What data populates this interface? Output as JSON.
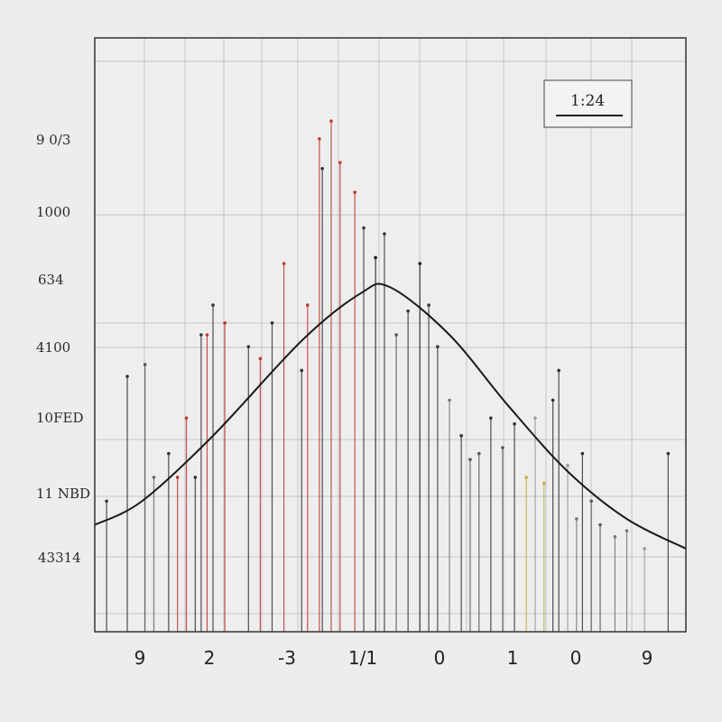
{
  "chart_data": {
    "type": "line",
    "y_tick_labels": [
      "9 0/3",
      "1000",
      "634",
      "4100",
      "10FED",
      "11 NBD",
      "43314"
    ],
    "x_tick_labels": [
      "9",
      "2",
      "-3",
      "1/1",
      "0",
      "1",
      "0",
      "9"
    ],
    "legend": {
      "label": "1:24",
      "placement": "top-right"
    },
    "grid": true,
    "xlim": [
      0,
      1
    ],
    "ylim": [
      0,
      1
    ],
    "series": [
      {
        "color": "#1a1a1a",
        "x": [
          0.0,
          0.08,
          0.2,
          0.35,
          0.45,
          0.5,
          0.6,
          0.7,
          0.8,
          0.9,
          1.0
        ],
        "y": [
          0.18,
          0.22,
          0.33,
          0.49,
          0.57,
          0.58,
          0.5,
          0.38,
          0.27,
          0.19,
          0.14
        ]
      }
    ],
    "spikes": [
      {
        "x": 0.02,
        "y": 0.22,
        "color": "#333333"
      },
      {
        "x": 0.055,
        "y": 0.43,
        "color": "#333333"
      },
      {
        "x": 0.085,
        "y": 0.45,
        "color": "#555555"
      },
      {
        "x": 0.1,
        "y": 0.26,
        "color": "#666666"
      },
      {
        "x": 0.125,
        "y": 0.3,
        "color": "#333333"
      },
      {
        "x": 0.14,
        "y": 0.26,
        "color": "#c0392b"
      },
      {
        "x": 0.155,
        "y": 0.36,
        "color": "#c0392b"
      },
      {
        "x": 0.17,
        "y": 0.26,
        "color": "#333333"
      },
      {
        "x": 0.18,
        "y": 0.5,
        "color": "#333333"
      },
      {
        "x": 0.19,
        "y": 0.5,
        "color": "#c0392b"
      },
      {
        "x": 0.2,
        "y": 0.55,
        "color": "#333333"
      },
      {
        "x": 0.22,
        "y": 0.52,
        "color": "#c0392b"
      },
      {
        "x": 0.26,
        "y": 0.48,
        "color": "#333333"
      },
      {
        "x": 0.28,
        "y": 0.46,
        "color": "#c0392b"
      },
      {
        "x": 0.3,
        "y": 0.52,
        "color": "#333333"
      },
      {
        "x": 0.32,
        "y": 0.62,
        "color": "#c0392b"
      },
      {
        "x": 0.35,
        "y": 0.44,
        "color": "#333333"
      },
      {
        "x": 0.36,
        "y": 0.55,
        "color": "#c0392b"
      },
      {
        "x": 0.38,
        "y": 0.83,
        "color": "#c0392b"
      },
      {
        "x": 0.385,
        "y": 0.78,
        "color": "#333333"
      },
      {
        "x": 0.4,
        "y": 0.86,
        "color": "#c0392b"
      },
      {
        "x": 0.415,
        "y": 0.79,
        "color": "#c0392b"
      },
      {
        "x": 0.44,
        "y": 0.74,
        "color": "#c0392b"
      },
      {
        "x": 0.455,
        "y": 0.68,
        "color": "#333333"
      },
      {
        "x": 0.475,
        "y": 0.63,
        "color": "#1a1a1a"
      },
      {
        "x": 0.49,
        "y": 0.67,
        "color": "#333333"
      },
      {
        "x": 0.51,
        "y": 0.5,
        "color": "#555555"
      },
      {
        "x": 0.53,
        "y": 0.54,
        "color": "#333333"
      },
      {
        "x": 0.55,
        "y": 0.62,
        "color": "#1a1a1a"
      },
      {
        "x": 0.565,
        "y": 0.55,
        "color": "#333333"
      },
      {
        "x": 0.58,
        "y": 0.48,
        "color": "#333333"
      },
      {
        "x": 0.6,
        "y": 0.39,
        "color": "#777777"
      },
      {
        "x": 0.62,
        "y": 0.33,
        "color": "#333333"
      },
      {
        "x": 0.635,
        "y": 0.29,
        "color": "#555555"
      },
      {
        "x": 0.65,
        "y": 0.3,
        "color": "#555555"
      },
      {
        "x": 0.67,
        "y": 0.36,
        "color": "#333333"
      },
      {
        "x": 0.69,
        "y": 0.31,
        "color": "#555555"
      },
      {
        "x": 0.71,
        "y": 0.35,
        "color": "#333333"
      },
      {
        "x": 0.73,
        "y": 0.26,
        "color": "#b8b040"
      },
      {
        "x": 0.745,
        "y": 0.36,
        "color": "#999999"
      },
      {
        "x": 0.76,
        "y": 0.25,
        "color": "#b8b040"
      },
      {
        "x": 0.775,
        "y": 0.39,
        "color": "#333333"
      },
      {
        "x": 0.785,
        "y": 0.44,
        "color": "#333333"
      },
      {
        "x": 0.8,
        "y": 0.28,
        "color": "#999999"
      },
      {
        "x": 0.815,
        "y": 0.19,
        "color": "#777777"
      },
      {
        "x": 0.825,
        "y": 0.3,
        "color": "#333333"
      },
      {
        "x": 0.84,
        "y": 0.22,
        "color": "#555555"
      },
      {
        "x": 0.855,
        "y": 0.18,
        "color": "#555555"
      },
      {
        "x": 0.88,
        "y": 0.16,
        "color": "#777777"
      },
      {
        "x": 0.9,
        "y": 0.17,
        "color": "#777777"
      },
      {
        "x": 0.93,
        "y": 0.14,
        "color": "#999999"
      },
      {
        "x": 0.97,
        "y": 0.3,
        "color": "#333333"
      }
    ]
  },
  "colors": {
    "background": "#ededee",
    "plot_background": "#eeeeef",
    "grid": "#8a8a8a",
    "frame": "#333333",
    "curve": "#1a1a1a"
  }
}
